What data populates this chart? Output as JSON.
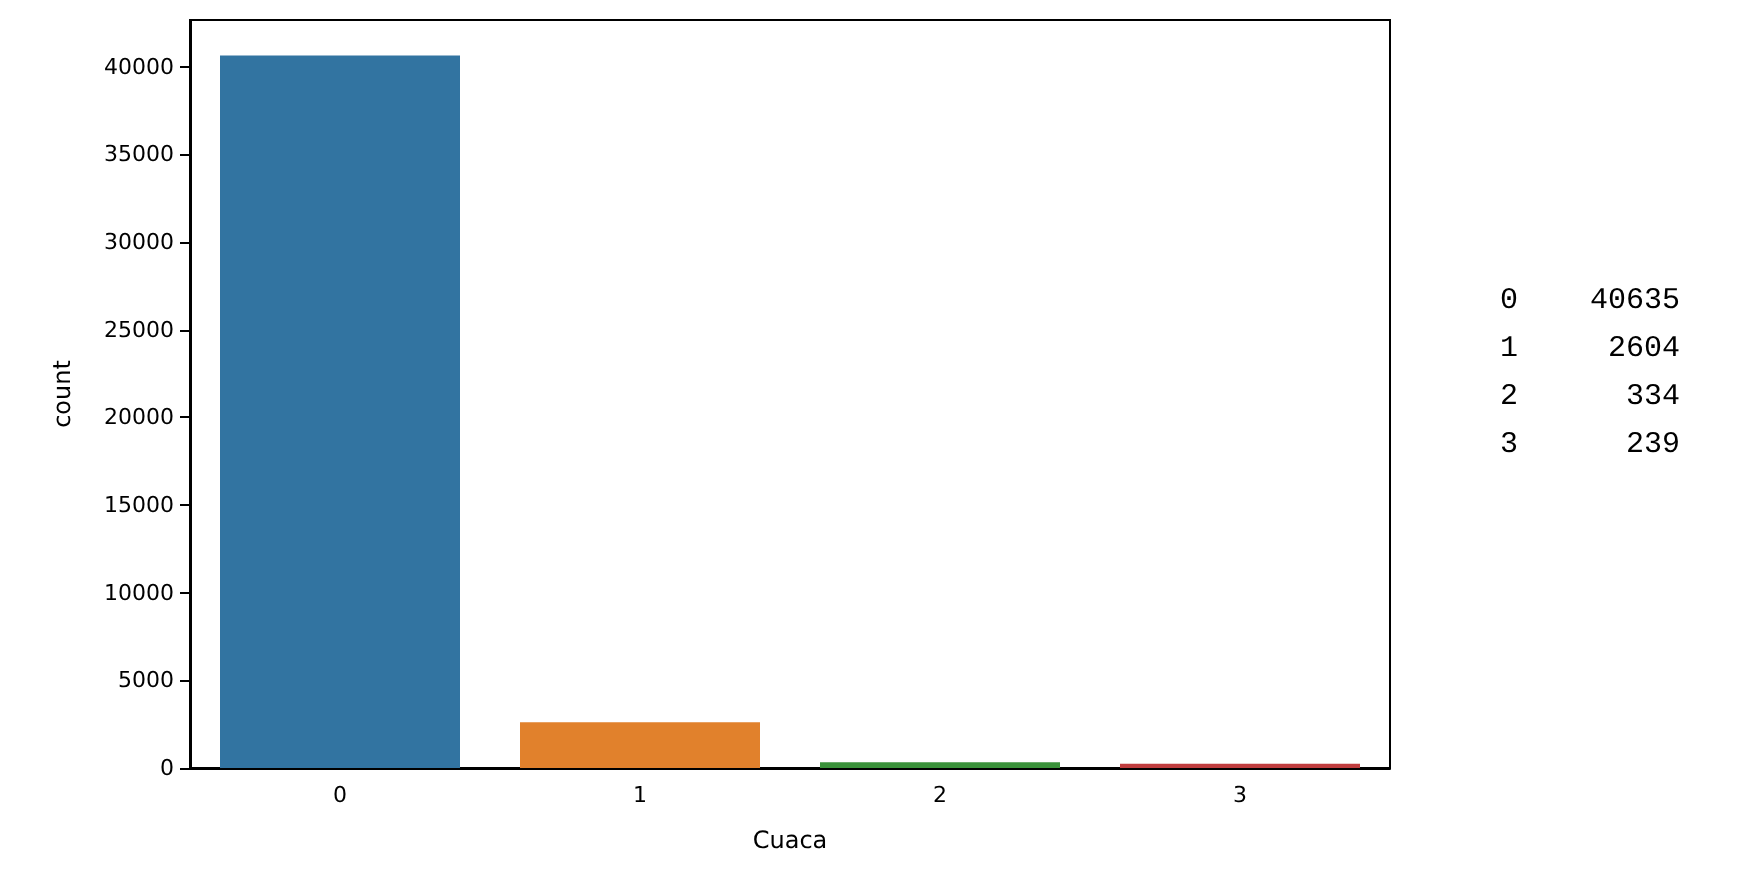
{
  "chart_data": {
    "type": "bar",
    "xlabel": "Cuaca",
    "ylabel": "count",
    "categories": [
      "0",
      "1",
      "2",
      "3"
    ],
    "values": [
      40635,
      2604,
      334,
      239
    ],
    "colors": [
      "#3274a1",
      "#e1812c",
      "#3a923a",
      "#c03d3e"
    ],
    "ylim": [
      0,
      42667
    ],
    "yticks": [
      0,
      5000,
      10000,
      15000,
      20000,
      25000,
      30000,
      35000,
      40000
    ],
    "grid": false,
    "annotations": [
      "0    40635",
      "1     2604",
      "2      334",
      "3      239"
    ]
  }
}
